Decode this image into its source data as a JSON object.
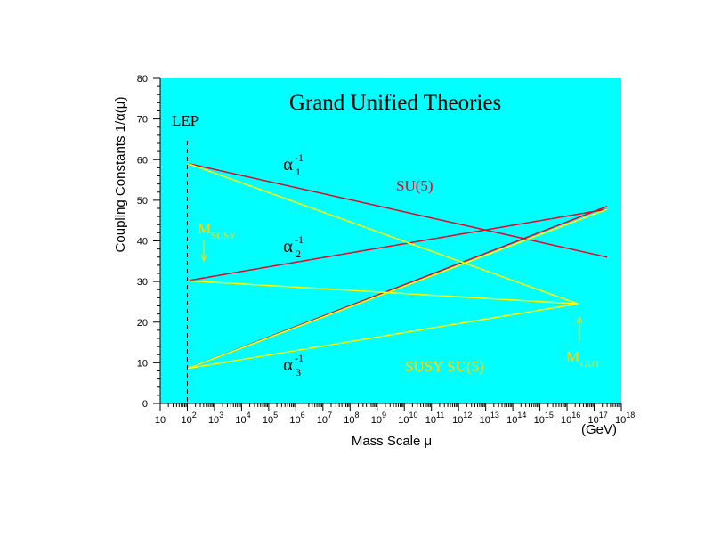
{
  "colors": {
    "plot_bg": "#00ffff",
    "sm_lines": "#e8001e",
    "susy_lines": "#ffff00",
    "susy_label": "#ffd700",
    "m_gut_label": "#ffd700",
    "m_susy_label": "#ffd700",
    "sm_label": "#e8001e",
    "text": "#000000"
  },
  "chart_data": {
    "type": "line",
    "title": "Grand Unified Theories",
    "xlabel": "Mass Scale μ",
    "ylabel": "Coupling Constants 1/α(μ)",
    "x_scale": "log",
    "xlim": [
      10,
      1e+18
    ],
    "ylim": [
      0,
      80
    ],
    "x_unit": "(GeV)",
    "x_ticks": [
      {
        "value": 10,
        "base": "10",
        "exp": ""
      },
      {
        "value": 100.0,
        "base": "10",
        "exp": "2"
      },
      {
        "value": 1000.0,
        "base": "10",
        "exp": "3"
      },
      {
        "value": 10000.0,
        "base": "10",
        "exp": "4"
      },
      {
        "value": 100000.0,
        "base": "10",
        "exp": "5"
      },
      {
        "value": 1000000.0,
        "base": "10",
        "exp": "6"
      },
      {
        "value": 10000000.0,
        "base": "10",
        "exp": "7"
      },
      {
        "value": 100000000.0,
        "base": "10",
        "exp": "8"
      },
      {
        "value": 1000000000.0,
        "base": "10",
        "exp": "9"
      },
      {
        "value": 10000000000.0,
        "base": "10",
        "exp": "10"
      },
      {
        "value": 100000000000.0,
        "base": "10",
        "exp": "11"
      },
      {
        "value": 1000000000000.0,
        "base": "10",
        "exp": "12"
      },
      {
        "value": 10000000000000.0,
        "base": "10",
        "exp": "13"
      },
      {
        "value": 100000000000000.0,
        "base": "10",
        "exp": "14"
      },
      {
        "value": 1000000000000000.0,
        "base": "10",
        "exp": "15"
      },
      {
        "value": 1e+16,
        "base": "10",
        "exp": "16"
      },
      {
        "value": 1e+17,
        "base": "10",
        "exp": "17"
      },
      {
        "value": 1e+18,
        "base": "10",
        "exp": "18"
      }
    ],
    "y_ticks": [
      0,
      10,
      20,
      30,
      40,
      50,
      60,
      70,
      80
    ],
    "series": [
      {
        "group": "SU(5)",
        "x": [
          100,
          3e+17
        ],
        "y": [
          59.1,
          36.0
        ]
      },
      {
        "group": "SU(5)",
        "x": [
          100,
          3e+17
        ],
        "y": [
          30.2,
          47.8
        ]
      },
      {
        "group": "SU(5)",
        "x": [
          100,
          3e+17
        ],
        "y": [
          8.6,
          48.5
        ]
      },
      {
        "group": "SUSY SU(5)",
        "x": [
          100,
          2.5e+16
        ],
        "y": [
          59.1,
          24.5
        ]
      },
      {
        "group": "SUSY SU(5)",
        "x": [
          100,
          2.5e+16
        ],
        "y": [
          30.2,
          24.5
        ]
      },
      {
        "group": "SUSY SU(5)",
        "x": [
          100,
          2.5e+16
        ],
        "y": [
          8.6,
          24.5
        ]
      },
      {
        "group": "SUSY SU(5)",
        "x": [
          100,
          3e+17
        ],
        "y": [
          8.6,
          47.8
        ]
      }
    ],
    "lep_x": 100,
    "annotations": {
      "lep": "LEP",
      "alpha": "α",
      "inv": "-1",
      "alpha1_sub": "1",
      "alpha2_sub": "2",
      "alpha3_sub": "3",
      "su5": "SU(5)",
      "susy_su5": "SUSY SU(5)",
      "m": "M",
      "m_susy_sub": "SUSY",
      "m_gut_sub": "GUT"
    }
  }
}
